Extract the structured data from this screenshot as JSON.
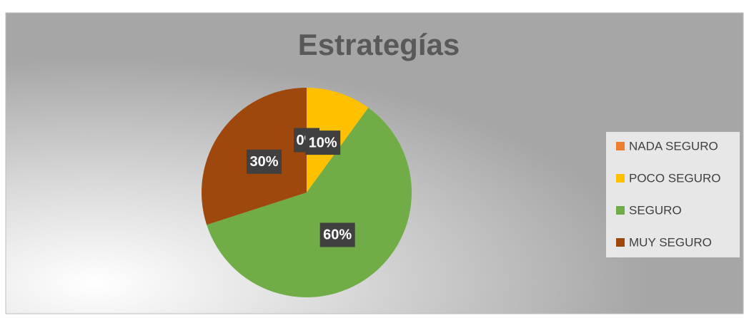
{
  "chart_data": {
    "type": "pie",
    "title": "Estrategías",
    "categories": [
      "NADA SEGURO",
      "POCO SEGURO",
      "SEGURO",
      "MUY SEGURO"
    ],
    "values": [
      0,
      10,
      60,
      30
    ],
    "value_labels": [
      "0%",
      "10%",
      "60%",
      "30%"
    ],
    "colors": [
      "#ed7d31",
      "#ffc000",
      "#70ad47",
      "#9e480e"
    ],
    "legend": "right"
  }
}
